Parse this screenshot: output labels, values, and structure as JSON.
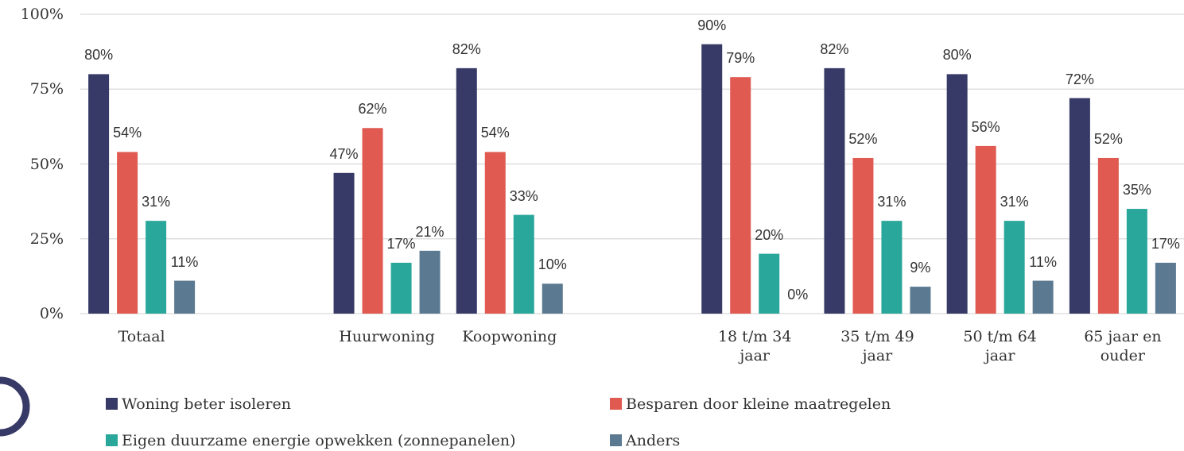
{
  "chart_data": {
    "type": "bar",
    "categories": [
      "Totaal",
      null,
      "Huurwoning",
      "Koopwoning",
      null,
      "18 t/m 34 jaar",
      "35 t/m 49 jaar",
      "50 t/m 64 jaar",
      "65 jaar en ouder"
    ],
    "series": [
      {
        "name": "Woning beter isoleren",
        "color": "#373a66",
        "values": [
          80,
          null,
          47,
          82,
          null,
          90,
          82,
          80,
          72
        ],
        "value_labels": [
          "80%",
          null,
          "47%",
          "82%",
          null,
          "90%",
          "82%",
          "80%",
          "72%"
        ]
      },
      {
        "name": "Besparen door kleine maatregelen",
        "color": "#e05a52",
        "values": [
          54,
          null,
          62,
          54,
          null,
          79,
          52,
          56,
          52
        ],
        "value_labels": [
          "54%",
          null,
          "62%",
          "54%",
          null,
          "79%",
          "52%",
          "56%",
          "52%"
        ]
      },
      {
        "name": "Eigen duurzame energie opwekken (zonnepanelen)",
        "color": "#2aa79b",
        "values": [
          31,
          null,
          17,
          33,
          null,
          20,
          31,
          31,
          35
        ],
        "value_labels": [
          "31%",
          null,
          "17%",
          "33%",
          null,
          "20%",
          "31%",
          "31%",
          "35%"
        ]
      },
      {
        "name": "Anders",
        "color": "#5b7a91",
        "values": [
          11,
          null,
          21,
          10,
          null,
          0,
          9,
          11,
          17
        ],
        "value_labels": [
          "11%",
          null,
          "21%",
          "10%",
          null,
          "0%",
          "9%",
          "11%",
          "17%"
        ]
      }
    ],
    "ylim": [
      0,
      100
    ],
    "yticks": [
      {
        "value": 0,
        "label": "0%"
      },
      {
        "value": 25,
        "label": "25%"
      },
      {
        "value": 50,
        "label": "50%"
      },
      {
        "value": 75,
        "label": "75%"
      },
      {
        "value": 100,
        "label": "100%"
      }
    ],
    "grid": true,
    "legend": "bottom"
  }
}
